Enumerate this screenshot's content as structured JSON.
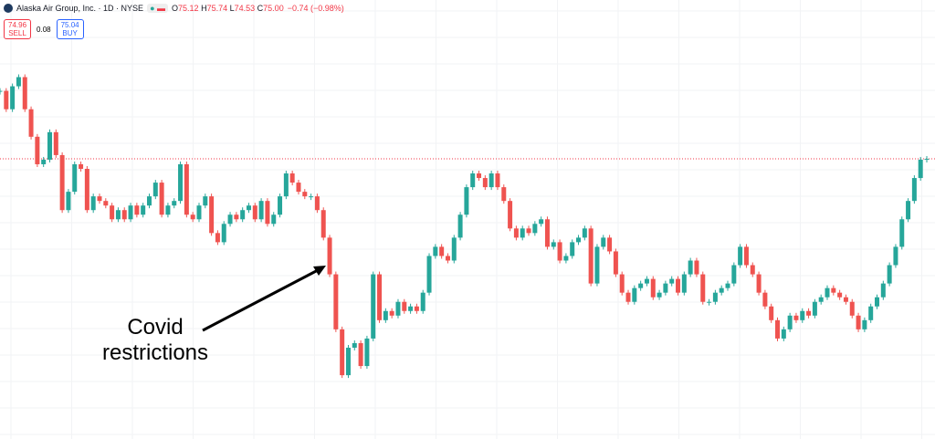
{
  "header": {
    "symbol": "Alaska Air Group, Inc. · 1D · NYSE",
    "ohlc": [
      {
        "key": "O",
        "value": 75.12
      },
      {
        "key": "H",
        "value": 75.74
      },
      {
        "key": "L",
        "value": 74.53
      },
      {
        "key": "C",
        "value": 75,
        "label": "75.00"
      }
    ],
    "change": "−0.74 (−0.98%)",
    "sell": {
      "price": 74.96,
      "label": "SELL"
    },
    "spread": 0.08,
    "buy": {
      "price": 75.04,
      "label": "BUY"
    }
  },
  "chart_data": {
    "type": "candlestick",
    "annotation": [
      "Covid",
      "restrictions"
    ],
    "values": [
      91.3,
      86.9,
      92.4,
      94.6,
      86.9,
      80.3,
      73.7,
      74.8,
      81.4,
      75.9,
      62.7,
      67.1,
      73.7,
      72.6,
      62.7,
      66.0,
      64.9,
      63.8,
      60.5,
      62.7,
      60.5,
      63.8,
      61.6,
      63.8,
      66.0,
      69.3,
      61.6,
      63.8,
      64.9,
      73.7,
      61.6,
      60.5,
      63.8,
      66.0,
      57.2,
      55.0,
      59.4,
      61.6,
      60.5,
      62.7,
      63.8,
      60.5,
      64.9,
      59.4,
      61.6,
      66.0,
      71.5,
      69.3,
      67.1,
      66.0,
      66.0,
      62.7,
      56.1,
      47.3,
      34.1,
      23.1,
      29.7,
      30.8,
      25.3,
      31.9,
      47.3,
      36.3,
      38.5,
      37.4,
      40.7,
      38.5,
      39.6,
      38.5,
      42.9,
      51.7,
      53.9,
      51.7,
      50.6,
      56.1,
      61.6,
      68.2,
      71.5,
      70.4,
      68.2,
      71.5,
      68.2,
      64.9,
      58.3,
      56.1,
      58.3,
      57.2,
      59.4,
      60.5,
      53.9,
      55.0,
      50.6,
      51.7,
      55.0,
      56.1,
      58.3,
      45.1,
      53.9,
      56.1,
      52.8,
      47.3,
      42.9,
      40.7,
      44.0,
      45.1,
      46.2,
      41.8,
      42.9,
      45.1,
      46.2,
      42.9,
      47.3,
      50.6,
      47.3,
      40.7,
      40.7,
      42.9,
      44.0,
      45.1,
      49.5,
      53.9,
      49.5,
      47.3,
      42.9,
      39.6,
      36.3,
      31.9,
      34.1,
      37.4,
      36.3,
      38.5,
      37.4,
      40.7,
      41.8,
      44.0,
      42.9,
      41.8,
      40.7,
      37.4,
      34.1,
      36.3,
      39.6,
      41.8,
      45.1,
      49.5,
      53.9,
      60.5,
      64.9,
      70.4,
      74.8,
      75
    ],
    "ylim": [
      7.8,
      113.1
    ],
    "up_color": "#26a69a",
    "down_color": "#ef5350",
    "price_line_color": "#f23645"
  }
}
